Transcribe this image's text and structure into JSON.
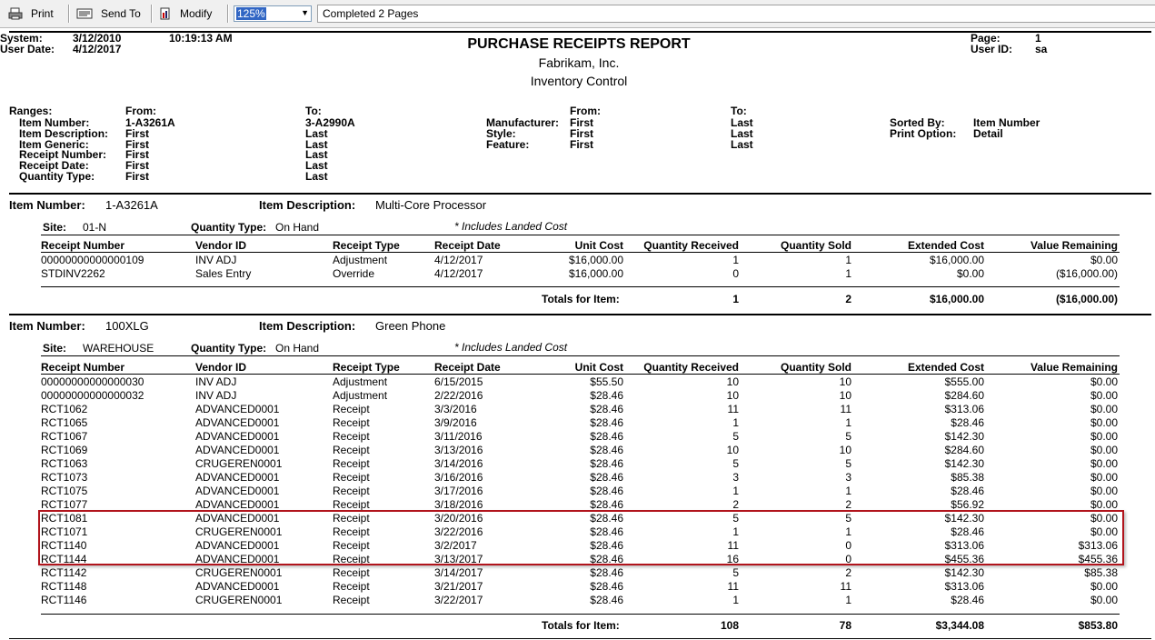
{
  "toolbar": {
    "print_label": "Print",
    "send_label": "Send To",
    "modify_label": "Modify",
    "zoom_value": "125%",
    "status_text": "Completed 2 Pages"
  },
  "header": {
    "system_label": "System:",
    "system_date": "3/12/2010",
    "system_time": "10:19:13 AM",
    "user_date_label": "User Date:",
    "user_date": "4/12/2017",
    "title": "PURCHASE RECEIPTS REPORT",
    "company": "Fabrikam, Inc.",
    "subtitle": "Inventory Control",
    "page_label": "Page:",
    "page_value": "1",
    "userid_label": "User ID:",
    "userid_value": "sa"
  },
  "ranges": {
    "label": "Ranges:",
    "from_label": "From:",
    "to_label": "To:",
    "from2_label": "From:",
    "to2_label": "To:",
    "left": [
      {
        "name": "Item Number:",
        "from": "1-A3261A",
        "to": "3-A2990A"
      },
      {
        "name": "Item Description:",
        "from": "First",
        "to": "Last"
      },
      {
        "name": "Item Generic:",
        "from": "First",
        "to": "Last"
      },
      {
        "name": "Receipt Number:",
        "from": "First",
        "to": "Last"
      },
      {
        "name": "Receipt Date:",
        "from": "First",
        "to": "Last"
      },
      {
        "name": "Quantity Type:",
        "from": "First",
        "to": "Last"
      }
    ],
    "right": [
      {
        "name": "Manufacturer:",
        "from": "First",
        "to": "Last"
      },
      {
        "name": "Style:",
        "from": "First",
        "to": "Last"
      },
      {
        "name": "Feature:",
        "from": "First",
        "to": "Last"
      }
    ],
    "sorted_by_label": "Sorted By:",
    "sorted_by_value": "Item Number",
    "print_option_label": "Print Option:",
    "print_option_value": "Detail"
  },
  "columns": [
    "Receipt Number",
    "Vendor ID",
    "Receipt Type",
    "Receipt Date",
    "Unit Cost",
    "Quantity Received",
    "Quantity Sold",
    "Extended Cost",
    "Value Remaining"
  ],
  "labels": {
    "item_number": "Item Number:",
    "item_description": "Item Description:",
    "site": "Site:",
    "quantity_type": "Quantity Type:",
    "landed_cost_note": "* Includes Landed Cost",
    "totals_for_item": "Totals for Item:"
  },
  "items": [
    {
      "item_number": "1-A3261A",
      "item_description": "Multi-Core Processor",
      "site": "01-N",
      "quantity_type": "On Hand",
      "rows": [
        [
          "00000000000000109",
          "INV ADJ",
          "Adjustment",
          "4/12/2017",
          "$16,000.00",
          "1",
          "1",
          "$16,000.00",
          "$0.00"
        ],
        [
          "STDINV2262",
          "Sales Entry",
          "Override",
          "4/12/2017",
          "$16,000.00",
          "0",
          "1",
          "$0.00",
          "($16,000.00)"
        ]
      ],
      "totals": {
        "qty_received": "1",
        "qty_sold": "2",
        "extended_cost": "$16,000.00",
        "value_remaining": "($16,000.00)"
      }
    },
    {
      "item_number": "100XLG",
      "item_description": "Green Phone",
      "site": "WAREHOUSE",
      "quantity_type": "On Hand",
      "rows": [
        [
          "00000000000000030",
          "INV ADJ",
          "Adjustment",
          "6/15/2015",
          "$55.50",
          "10",
          "10",
          "$555.00",
          "$0.00"
        ],
        [
          "00000000000000032",
          "INV ADJ",
          "Adjustment",
          "2/22/2016",
          "$28.46",
          "10",
          "10",
          "$284.60",
          "$0.00"
        ],
        [
          "RCT1062",
          "ADVANCED0001",
          "Receipt",
          "3/3/2016",
          "$28.46",
          "11",
          "11",
          "$313.06",
          "$0.00"
        ],
        [
          "RCT1065",
          "ADVANCED0001",
          "Receipt",
          "3/9/2016",
          "$28.46",
          "1",
          "1",
          "$28.46",
          "$0.00"
        ],
        [
          "RCT1067",
          "ADVANCED0001",
          "Receipt",
          "3/11/2016",
          "$28.46",
          "5",
          "5",
          "$142.30",
          "$0.00"
        ],
        [
          "RCT1069",
          "ADVANCED0001",
          "Receipt",
          "3/13/2016",
          "$28.46",
          "10",
          "10",
          "$284.60",
          "$0.00"
        ],
        [
          "RCT1063",
          "CRUGEREN0001",
          "Receipt",
          "3/14/2016",
          "$28.46",
          "5",
          "5",
          "$142.30",
          "$0.00"
        ],
        [
          "RCT1073",
          "ADVANCED0001",
          "Receipt",
          "3/16/2016",
          "$28.46",
          "3",
          "3",
          "$85.38",
          "$0.00"
        ],
        [
          "RCT1075",
          "ADVANCED0001",
          "Receipt",
          "3/17/2016",
          "$28.46",
          "1",
          "1",
          "$28.46",
          "$0.00"
        ],
        [
          "RCT1077",
          "ADVANCED0001",
          "Receipt",
          "3/18/2016",
          "$28.46",
          "2",
          "2",
          "$56.92",
          "$0.00"
        ],
        [
          "RCT1081",
          "ADVANCED0001",
          "Receipt",
          "3/20/2016",
          "$28.46",
          "5",
          "5",
          "$142.30",
          "$0.00"
        ],
        [
          "RCT1071",
          "CRUGEREN0001",
          "Receipt",
          "3/22/2016",
          "$28.46",
          "1",
          "1",
          "$28.46",
          "$0.00"
        ],
        [
          "RCT1140",
          "ADVANCED0001",
          "Receipt",
          "3/2/2017",
          "$28.46",
          "11",
          "0",
          "$313.06",
          "$313.06"
        ],
        [
          "RCT1144",
          "ADVANCED0001",
          "Receipt",
          "3/13/2017",
          "$28.46",
          "16",
          "0",
          "$455.36",
          "$455.36"
        ],
        [
          "RCT1142",
          "CRUGEREN0001",
          "Receipt",
          "3/14/2017",
          "$28.46",
          "5",
          "2",
          "$142.30",
          "$85.38"
        ],
        [
          "RCT1148",
          "ADVANCED0001",
          "Receipt",
          "3/21/2017",
          "$28.46",
          "11",
          "11",
          "$313.06",
          "$0.00"
        ],
        [
          "RCT1146",
          "CRUGEREN0001",
          "Receipt",
          "3/22/2017",
          "$28.46",
          "1",
          "1",
          "$28.46",
          "$0.00"
        ]
      ],
      "totals": {
        "qty_received": "108",
        "qty_sold": "78",
        "extended_cost": "$3,344.08",
        "value_remaining": "$853.80"
      }
    }
  ]
}
